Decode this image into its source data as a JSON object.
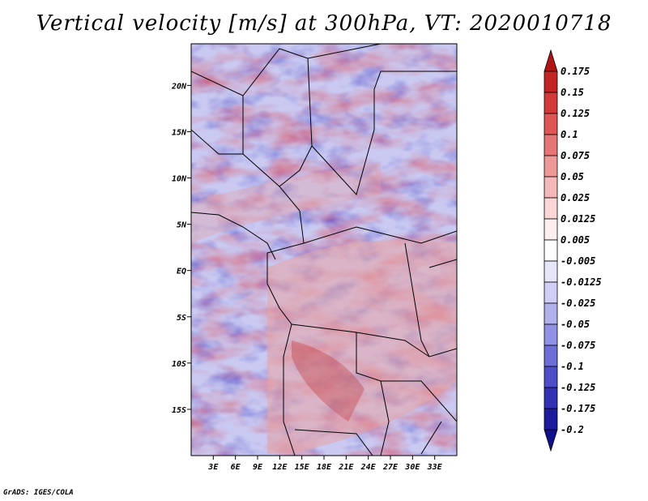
{
  "title": "Vertical velocity [m/s] at 300hPa, VT: 2020010718",
  "footer": "GrADS: IGES/COLA",
  "chart_data": {
    "type": "heatmap",
    "title": "Vertical velocity [m/s] at 300hPa, VT: 2020010718",
    "variable": "Vertical velocity",
    "units": "m/s",
    "level": "300hPa",
    "valid_time": "2020010718",
    "x_axis": {
      "range_deg_lon": [
        0,
        36
      ],
      "ticks": [
        {
          "value": 3,
          "label": "3E"
        },
        {
          "value": 6,
          "label": "6E"
        },
        {
          "value": 9,
          "label": "9E"
        },
        {
          "value": 12,
          "label": "12E"
        },
        {
          "value": 15,
          "label": "15E"
        },
        {
          "value": 18,
          "label": "18E"
        },
        {
          "value": 21,
          "label": "21E"
        },
        {
          "value": 24,
          "label": "24E"
        },
        {
          "value": 27,
          "label": "27E"
        },
        {
          "value": 30,
          "label": "30E"
        },
        {
          "value": 33,
          "label": "33E"
        }
      ]
    },
    "y_axis": {
      "range_deg_lat": [
        -20,
        24.5
      ],
      "ticks": [
        {
          "value": 20,
          "label": "20N"
        },
        {
          "value": 15,
          "label": "15N"
        },
        {
          "value": 10,
          "label": "10N"
        },
        {
          "value": 5,
          "label": "5N"
        },
        {
          "value": 0,
          "label": "EQ"
        },
        {
          "value": -5,
          "label": "5S"
        },
        {
          "value": -10,
          "label": "10S"
        },
        {
          "value": -15,
          "label": "15S"
        }
      ]
    },
    "colorbar": {
      "labels": [
        "0.175",
        "0.15",
        "0.125",
        "0.1",
        "0.075",
        "0.05",
        "0.025",
        "0.0125",
        "0.005",
        "-0.005",
        "-0.0125",
        "-0.025",
        "-0.05",
        "-0.075",
        "-0.1",
        "-0.125",
        "-0.175",
        "-0.2"
      ],
      "colors": [
        "#b01414",
        "#c32424",
        "#d23a3a",
        "#de5656",
        "#e67676",
        "#ee9898",
        "#f5b8b8",
        "#fad6d6",
        "#fdeeee",
        "#ffffff",
        "#e6e6fb",
        "#cfcff5",
        "#b1b1ee",
        "#9090e4",
        "#6e6ed8",
        "#4e4ec8",
        "#3131b4",
        "#1c1c9c",
        "#10108a"
      ]
    }
  }
}
